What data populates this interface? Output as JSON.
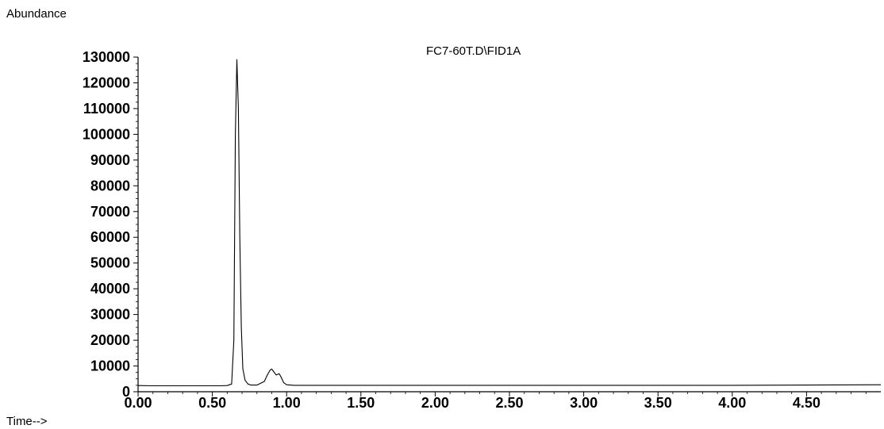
{
  "chart_data": {
    "type": "line",
    "title": "FC7-60T.D\\FID1A",
    "ylabel": "Abundance",
    "xlabel": "Time-->",
    "xlim": [
      0.0,
      5.0
    ],
    "ylim": [
      0,
      130000
    ],
    "x_ticks": [
      0.0,
      0.5,
      1.0,
      1.5,
      2.0,
      2.5,
      3.0,
      3.5,
      4.0,
      4.5
    ],
    "x_tick_labels": [
      "0.00",
      "0.50",
      "1.00",
      "1.50",
      "2.00",
      "2.50",
      "3.00",
      "3.50",
      "4.00",
      "4.50"
    ],
    "y_ticks": [
      0,
      10000,
      20000,
      30000,
      40000,
      50000,
      60000,
      70000,
      80000,
      90000,
      100000,
      110000,
      120000,
      130000
    ],
    "y_tick_labels": [
      "0",
      "10000",
      "20000",
      "30000",
      "40000",
      "50000",
      "60000",
      "70000",
      "80000",
      "90000",
      "100000",
      "110000",
      "120000",
      "130000"
    ],
    "grid": false,
    "series": [
      {
        "x": [
          0.0,
          0.1,
          0.2,
          0.3,
          0.4,
          0.5,
          0.55,
          0.6,
          0.63,
          0.645,
          0.655,
          0.665,
          0.675,
          0.685,
          0.695,
          0.705,
          0.72,
          0.74,
          0.76,
          0.8,
          0.85,
          0.87,
          0.89,
          0.9,
          0.91,
          0.93,
          0.95,
          0.96,
          0.98,
          1.0,
          1.05,
          1.2,
          1.5,
          2.0,
          2.5,
          3.0,
          3.5,
          4.0,
          4.5,
          5.0
        ],
        "y": [
          2400,
          2300,
          2300,
          2300,
          2300,
          2300,
          2300,
          2400,
          3000,
          20000,
          100000,
          129000,
          110000,
          60000,
          25000,
          9000,
          4500,
          3000,
          2600,
          2600,
          4000,
          6500,
          8500,
          8800,
          8000,
          6500,
          7000,
          6000,
          3500,
          2700,
          2500,
          2500,
          2500,
          2500,
          2500,
          2500,
          2500,
          2500,
          2600,
          2700
        ]
      }
    ]
  }
}
